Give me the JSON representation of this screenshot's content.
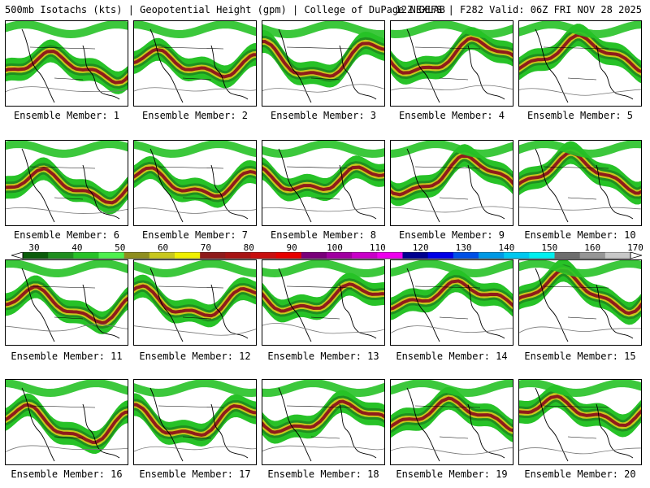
{
  "header": {
    "left_title": "500mb Isotachs (kts) | Geopotential Height (gpm) | College of DuPage NEXLAB",
    "right_title": "12Z GEFS | F282 Valid: 06Z FRI NOV 28 2025"
  },
  "colorbar": {
    "labels": [
      "30",
      "40",
      "50",
      "60",
      "70",
      "80",
      "90",
      "100",
      "110",
      "120",
      "130",
      "140",
      "150",
      "160",
      "170"
    ],
    "colors": [
      "#0b5d0b",
      "#1f8f1f",
      "#27c227",
      "#4ef04e",
      "#8f8f1f",
      "#c8c81e",
      "#f0f000",
      "#8f1b1b",
      "#a81414",
      "#c80f0f",
      "#e60000",
      "#7a007a",
      "#a000a0",
      "#c800c8",
      "#ee00ee",
      "#00008f",
      "#0000e6",
      "#0050e6",
      "#0099e6",
      "#00c8f0",
      "#00f0f0",
      "#6e6e6e",
      "#969696",
      "#c8c8c8"
    ]
  },
  "panels": [
    {
      "label": "Ensemble Member: 1"
    },
    {
      "label": "Ensemble Member: 2"
    },
    {
      "label": "Ensemble Member: 3"
    },
    {
      "label": "Ensemble Member: 4"
    },
    {
      "label": "Ensemble Member: 5"
    },
    {
      "label": "Ensemble Member: 6"
    },
    {
      "label": "Ensemble Member: 7"
    },
    {
      "label": "Ensemble Member: 8"
    },
    {
      "label": "Ensemble Member: 9"
    },
    {
      "label": "Ensemble Member: 10"
    },
    {
      "label": "Ensemble Member: 11"
    },
    {
      "label": "Ensemble Member: 12"
    },
    {
      "label": "Ensemble Member: 13"
    },
    {
      "label": "Ensemble Member: 14"
    },
    {
      "label": "Ensemble Member: 15"
    },
    {
      "label": "Ensemble Member: 16"
    },
    {
      "label": "Ensemble Member: 17"
    },
    {
      "label": "Ensemble Member: 18"
    },
    {
      "label": "Ensemble Member: 19"
    },
    {
      "label": "Ensemble Member: 20"
    }
  ]
}
